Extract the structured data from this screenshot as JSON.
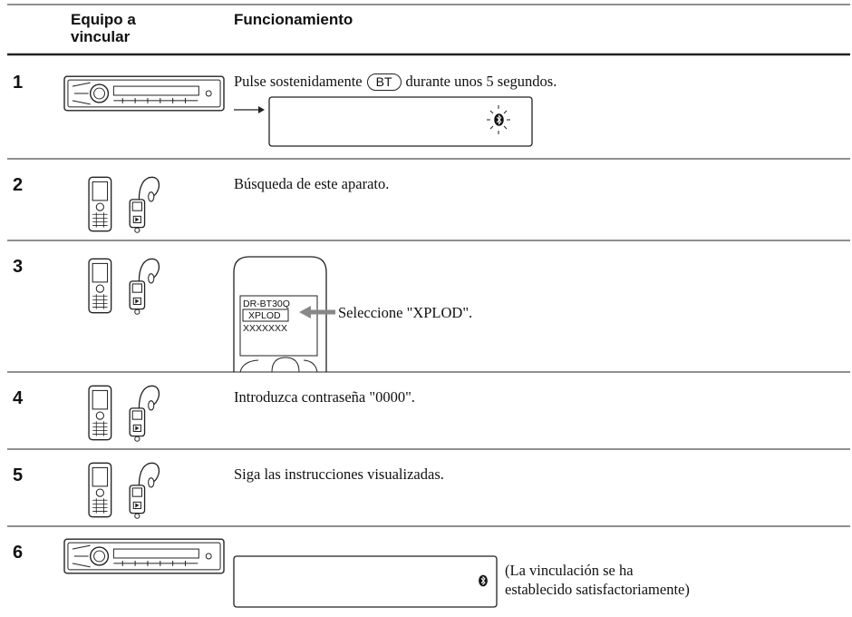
{
  "header": {
    "device": "Equipo a vincular",
    "operation": "Funcionamiento"
  },
  "steps": [
    {
      "number": "1",
      "before": "Pulse sostenidamente",
      "button": "BT",
      "after": "durante unos 5 segundos."
    },
    {
      "number": "2",
      "text": "Búsqueda de este aparato."
    },
    {
      "number": "3",
      "screen": [
        "DR-BT30Q",
        "XPLOD",
        "XXXXXXX"
      ],
      "text": "Seleccione \"XPLOD\"."
    },
    {
      "number": "4",
      "text": "Introduzca contraseña \"0000\"."
    },
    {
      "number": "5",
      "text": "Siga las instrucciones visualizadas."
    },
    {
      "number": "6",
      "text": "(La vinculación se ha establecido satisfactoriamente)"
    }
  ]
}
